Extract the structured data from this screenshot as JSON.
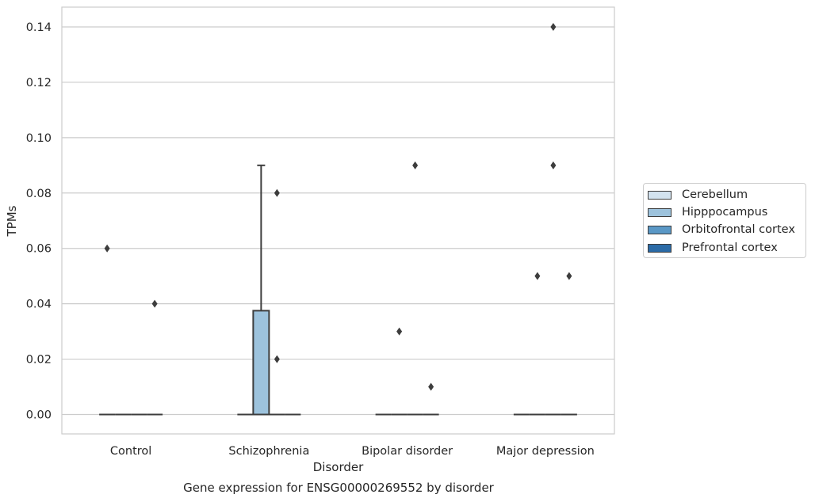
{
  "chart_data": {
    "type": "box",
    "title": "",
    "xlabel": "Disorder",
    "ylabel": "TPMs",
    "caption": "Gene expression for ENSG00000269552 by disorder",
    "categories": [
      "Control",
      "Schizophrenia",
      "Bipolar disorder",
      "Major depression"
    ],
    "ylim": [
      -0.007,
      0.147
    ],
    "yticks": [
      "0.00",
      "0.02",
      "0.04",
      "0.06",
      "0.08",
      "0.10",
      "0.12",
      "0.14"
    ],
    "ytick_values": [
      0.0,
      0.02,
      0.04,
      0.06,
      0.08,
      0.1,
      0.12,
      0.14
    ],
    "grid": true,
    "legend_position": "right",
    "series": [
      {
        "name": "Cerebellum",
        "color": "#d3e3f0",
        "boxes": [
          {
            "q1": 0,
            "median": 0,
            "q3": 0,
            "whisker_low": 0,
            "whisker_high": 0,
            "outliers": [
              0.06
            ]
          },
          {
            "q1": 0,
            "median": 0,
            "q3": 0,
            "whisker_low": 0,
            "whisker_high": 0,
            "outliers": []
          },
          {
            "q1": 0,
            "median": 0,
            "q3": 0,
            "whisker_low": 0,
            "whisker_high": 0,
            "outliers": []
          },
          {
            "q1": 0,
            "median": 0,
            "q3": 0,
            "whisker_low": 0,
            "whisker_high": 0,
            "outliers": []
          }
        ]
      },
      {
        "name": "Hipppocampus",
        "color": "#9dc3dd",
        "boxes": [
          {
            "q1": 0,
            "median": 0,
            "q3": 0,
            "whisker_low": 0,
            "whisker_high": 0,
            "outliers": []
          },
          {
            "q1": 0,
            "median": 0,
            "q3": 0.0375,
            "whisker_low": 0,
            "whisker_high": 0.09,
            "outliers": []
          },
          {
            "q1": 0,
            "median": 0,
            "q3": 0,
            "whisker_low": 0,
            "whisker_high": 0,
            "outliers": [
              0.03
            ]
          },
          {
            "q1": 0,
            "median": 0,
            "q3": 0,
            "whisker_low": 0,
            "whisker_high": 0,
            "outliers": [
              0.05
            ]
          }
        ]
      },
      {
        "name": "Orbitofrontal cortex",
        "color": "#5a98c6",
        "boxes": [
          {
            "q1": 0,
            "median": 0,
            "q3": 0,
            "whisker_low": 0,
            "whisker_high": 0,
            "outliers": []
          },
          {
            "q1": 0,
            "median": 0,
            "q3": 0,
            "whisker_low": 0,
            "whisker_high": 0,
            "outliers": [
              0.08,
              0.02
            ]
          },
          {
            "q1": 0,
            "median": 0,
            "q3": 0,
            "whisker_low": 0,
            "whisker_high": 0,
            "outliers": [
              0.09
            ]
          },
          {
            "q1": 0,
            "median": 0,
            "q3": 0,
            "whisker_low": 0,
            "whisker_high": 0,
            "outliers": [
              0.14,
              0.09
            ]
          }
        ]
      },
      {
        "name": "Prefrontal cortex",
        "color": "#2b6ba7",
        "boxes": [
          {
            "q1": 0,
            "median": 0,
            "q3": 0,
            "whisker_low": 0,
            "whisker_high": 0,
            "outliers": [
              0.04
            ]
          },
          {
            "q1": 0,
            "median": 0,
            "q3": 0,
            "whisker_low": 0,
            "whisker_high": 0,
            "outliers": []
          },
          {
            "q1": 0,
            "median": 0,
            "q3": 0,
            "whisker_low": 0,
            "whisker_high": 0,
            "outliers": [
              0.01
            ]
          },
          {
            "q1": 0,
            "median": 0,
            "q3": 0,
            "whisker_low": 0,
            "whisker_high": 0,
            "outliers": [
              0.05
            ]
          }
        ]
      }
    ]
  }
}
